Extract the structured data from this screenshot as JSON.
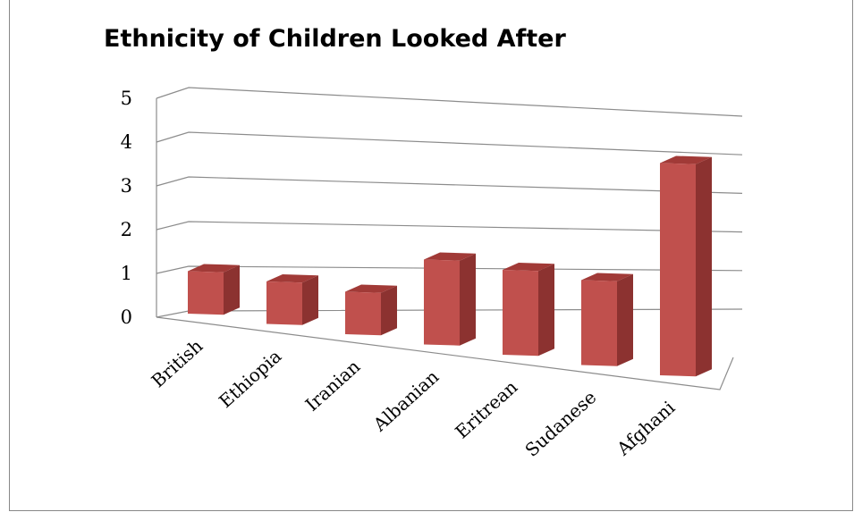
{
  "chart_data": {
    "type": "bar",
    "title": "Ethnicity of Children Looked After",
    "xlabel": "",
    "ylabel": "",
    "categories": [
      "British",
      "Ethiopia",
      "Iranian",
      "Albanian",
      "Eritrean",
      "Sudanese",
      "Afghani"
    ],
    "values": [
      1,
      1,
      1,
      2,
      2,
      2,
      5
    ],
    "ylim": [
      0,
      5
    ],
    "yticks": [
      "0",
      "1",
      "2",
      "3",
      "4",
      "5"
    ],
    "grid": true,
    "legend": "none",
    "bar_color": "#c0504d",
    "bar_side_color": "#8c3230",
    "bar_top_color": "#a13a37"
  }
}
